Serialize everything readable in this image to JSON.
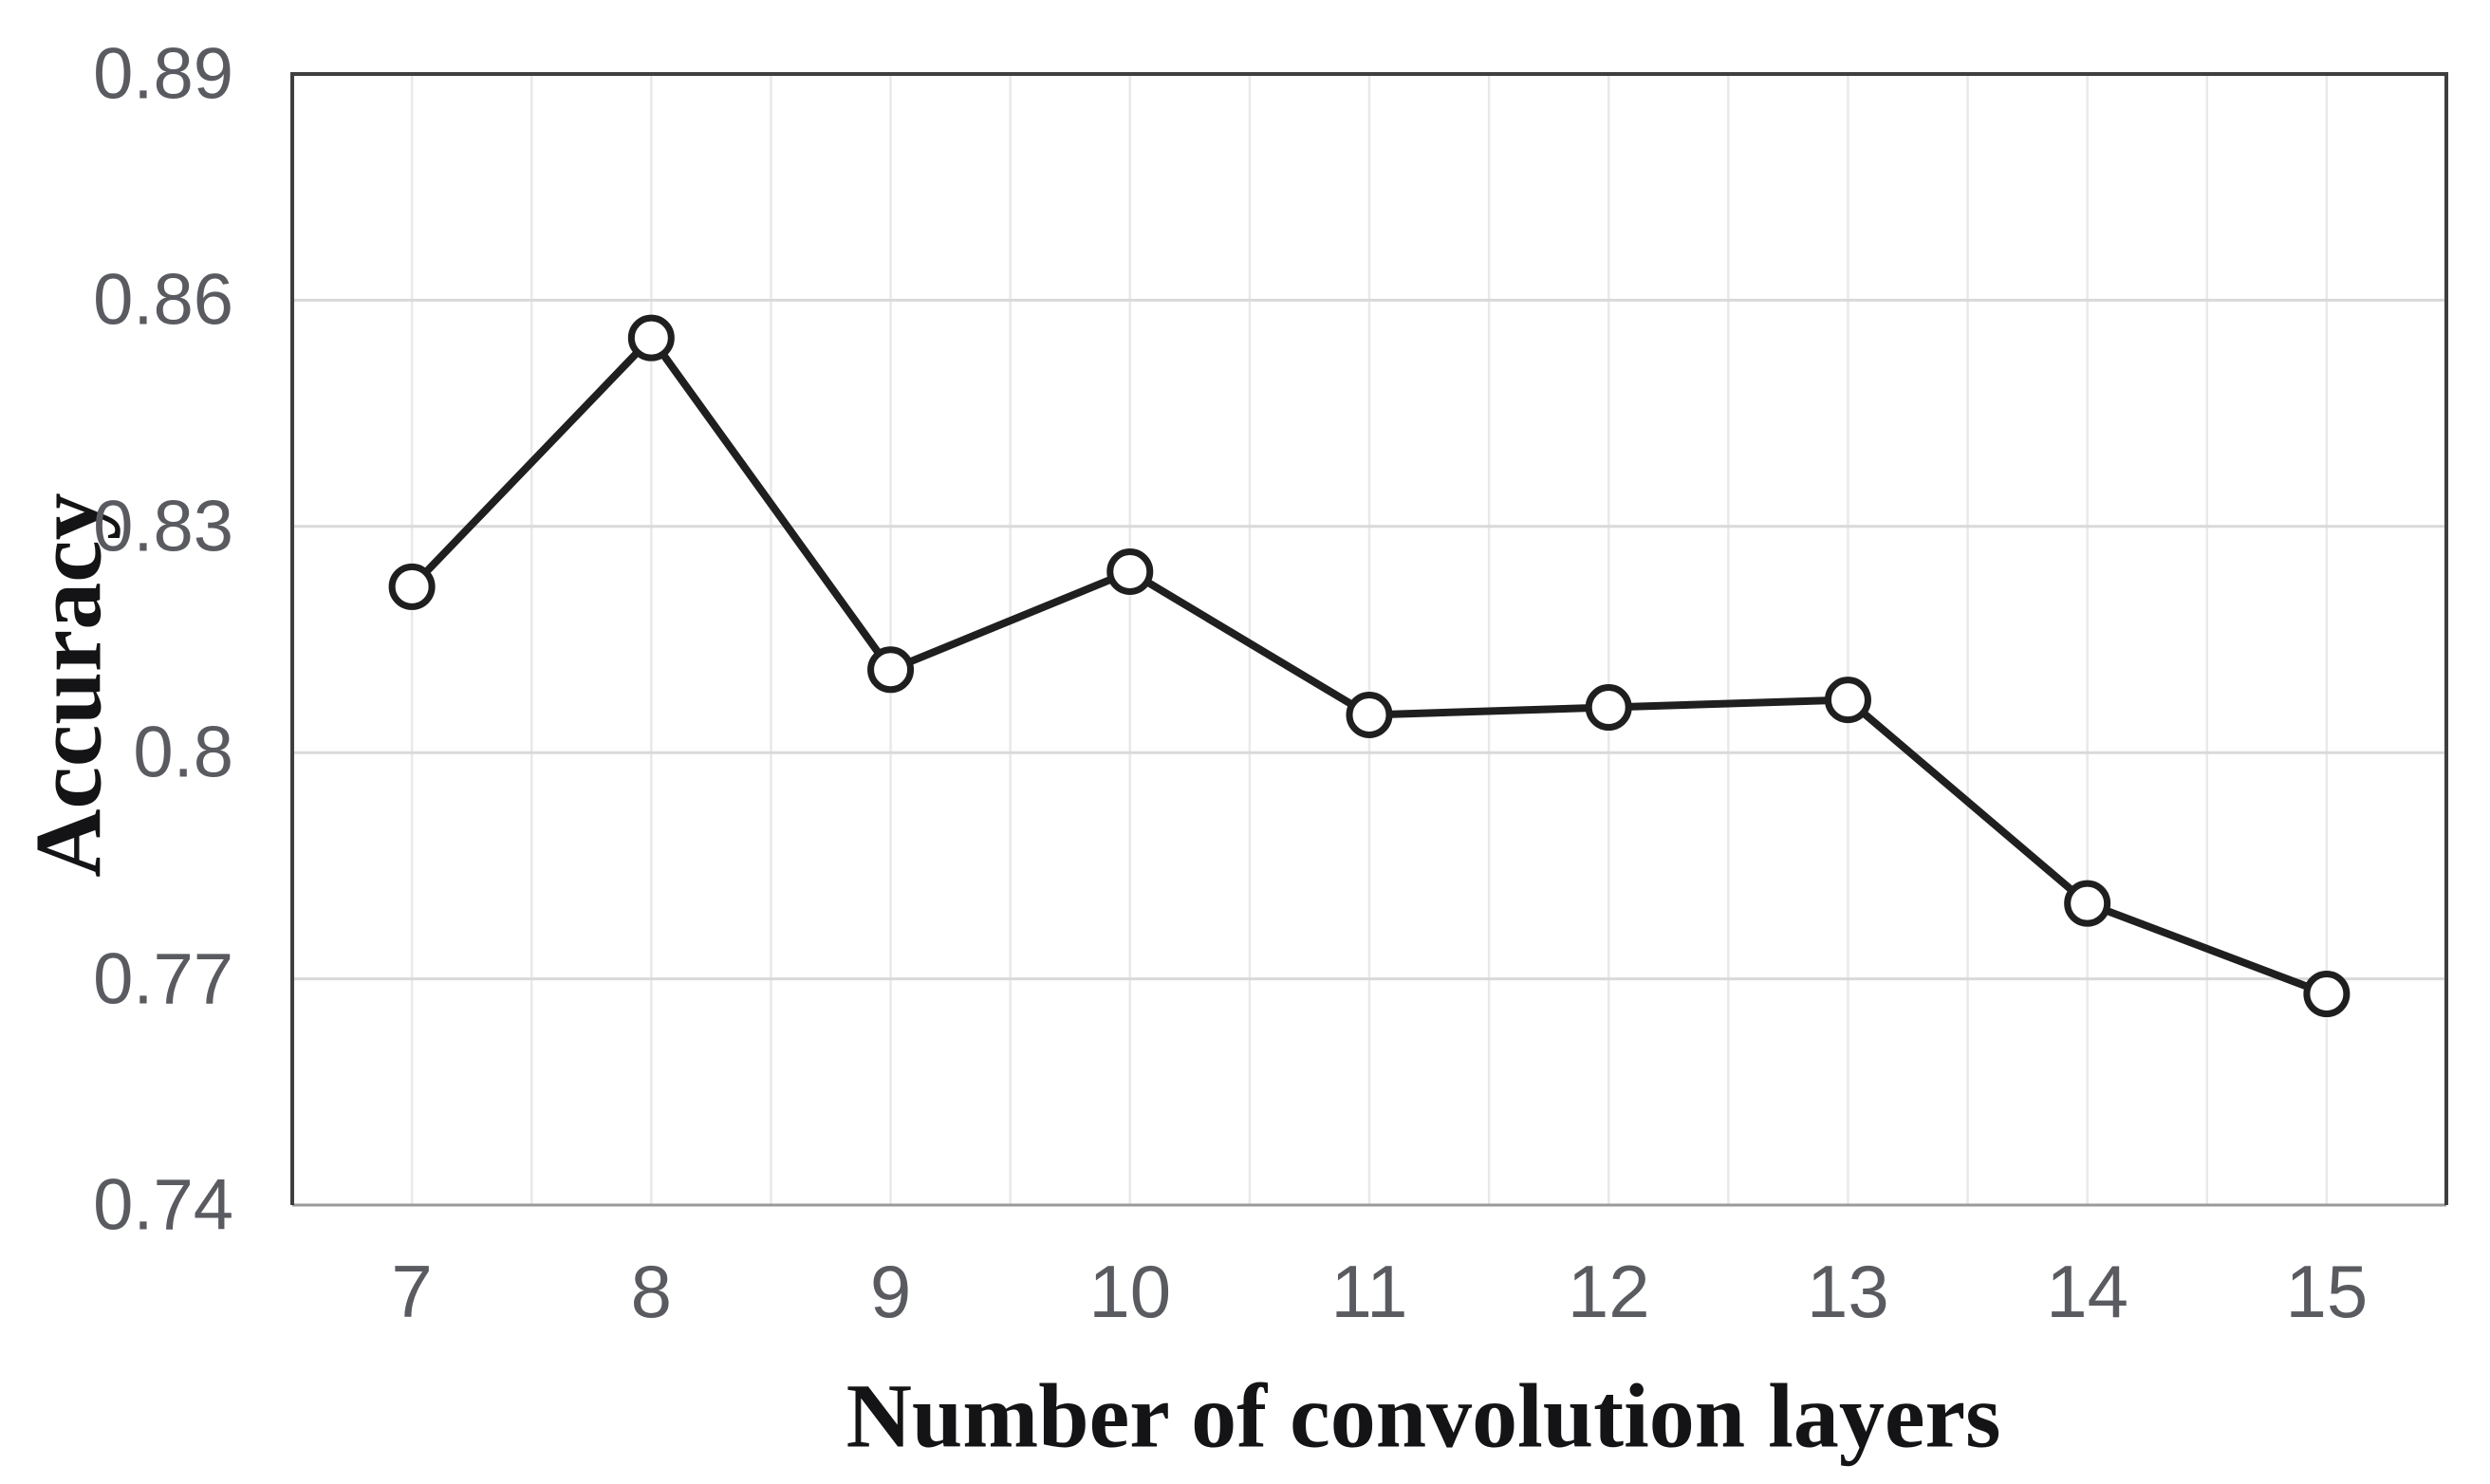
{
  "figure": {
    "background": "#ffffff"
  },
  "chart_data": {
    "type": "line",
    "title": "",
    "xlabel": "Number of convolution layers",
    "ylabel": "Accuracy",
    "categories": [
      7,
      8,
      9,
      10,
      11,
      12,
      13,
      14,
      15
    ],
    "values": [
      0.822,
      0.855,
      0.811,
      0.824,
      0.805,
      0.806,
      0.807,
      0.78,
      0.768
    ],
    "series_name": "Accuracy",
    "ylim": [
      0.74,
      0.89
    ],
    "y_ticks": [
      0.89,
      0.86,
      0.83,
      0.8,
      0.77,
      0.74
    ],
    "y_tick_labels": [
      "0.89",
      "0.86",
      "0.83",
      "0.8",
      "0.77",
      "0.74"
    ],
    "x_tick_labels": [
      "7",
      "8",
      "9",
      "10",
      "11",
      "12",
      "13",
      "14",
      "15"
    ],
    "grid": "on",
    "legend": "none",
    "marker": "open-circle",
    "colors": {
      "line": "#1f1f1f",
      "marker_fill": "#ffffff",
      "marker_stroke": "#1f1f1f",
      "h_gridline": "#d9d9d9",
      "v_gridline": "#e9e9e9",
      "frame": "#3f3f3f",
      "bottom_axis": "#9a9a9a",
      "tick_text": "#595b60",
      "axis_title_text": "#141416"
    }
  }
}
